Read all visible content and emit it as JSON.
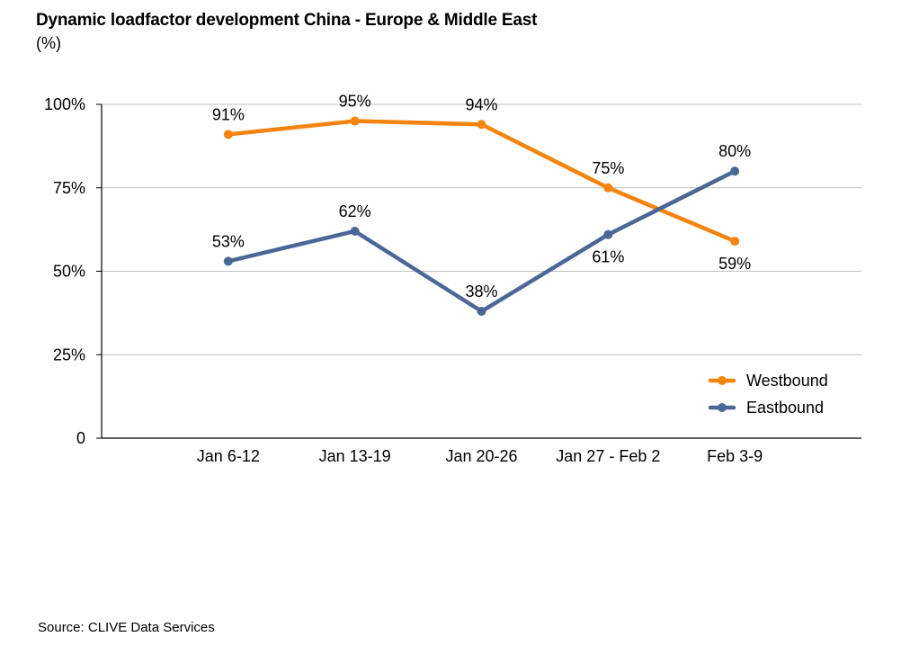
{
  "chart_data": {
    "type": "line",
    "title": "Dynamic loadfactor development China - Europe & Middle East",
    "subtitle": "(%)",
    "xlabel": "",
    "ylabel": "",
    "categories": [
      "Jan 6-12",
      "Jan 13-19",
      "Jan 20-26",
      "Jan 27 - Feb 2",
      "Feb 3-9"
    ],
    "ylim": [
      0,
      100
    ],
    "yticks": [
      0,
      25,
      50,
      75,
      100
    ],
    "ytick_labels": [
      "0",
      "25%",
      "50%",
      "75%",
      "100%"
    ],
    "grid": true,
    "legend_position": "bottom-right",
    "series": [
      {
        "name": "Westbound",
        "color": "#F5830F",
        "values": [
          91,
          95,
          94,
          75,
          59
        ],
        "labels": [
          "91%",
          "95%",
          "94%",
          "75%",
          "59%"
        ],
        "label_positions": [
          "above",
          "above",
          "above",
          "above",
          "below"
        ]
      },
      {
        "name": "Eastbound",
        "color": "#4A6796",
        "values": [
          53,
          62,
          38,
          61,
          80
        ],
        "labels": [
          "53%",
          "62%",
          "38%",
          "61%",
          "80%"
        ],
        "label_positions": [
          "above",
          "above",
          "above",
          "below",
          "above"
        ]
      }
    ],
    "source": "Source: CLIVE Data Services"
  }
}
